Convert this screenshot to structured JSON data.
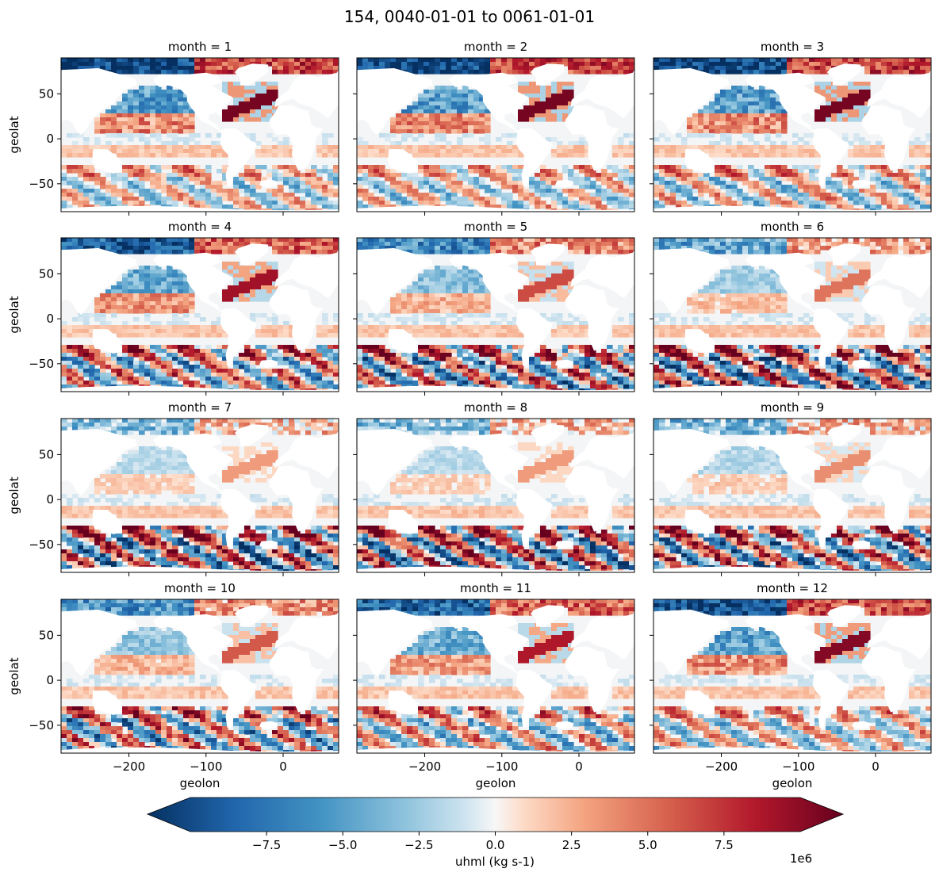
{
  "chart_data": {
    "type": "heatmap",
    "title": "154, 0040-01-01 to 0061-01-01",
    "variable": "uhml",
    "xlabel": "geolon",
    "ylabel": "geolat",
    "xlim": [
      -288,
      72
    ],
    "ylim": [
      -81,
      90
    ],
    "xticks": [
      -200,
      -100,
      0
    ],
    "xtick_labels": [
      "−200",
      "−100",
      "0"
    ],
    "yticks": [
      50,
      0,
      -50
    ],
    "ytick_labels": [
      "50",
      "0",
      "−50"
    ],
    "colormap": "RdBu_r",
    "colorbar": {
      "label": "uhml (kg s-1)",
      "vmin": -10000000,
      "vmax": 10000000,
      "extend": "both",
      "offset_text": "1e6",
      "ticks": [
        -7.5,
        -5.0,
        -2.5,
        0.0,
        2.5,
        5.0,
        7.5
      ],
      "tick_labels": [
        "−7.5",
        "−5.0",
        "−2.5",
        "0.0",
        "2.5",
        "5.0",
        "7.5"
      ]
    },
    "panels": [
      {
        "title": "month = 1",
        "month": 1,
        "intensity": 1.0,
        "south_intensity": 0.45,
        "north_intensity": 1.0
      },
      {
        "title": "month = 2",
        "month": 2,
        "intensity": 1.0,
        "south_intensity": 0.45,
        "north_intensity": 1.0
      },
      {
        "title": "month = 3",
        "month": 3,
        "intensity": 1.0,
        "south_intensity": 0.5,
        "north_intensity": 1.0
      },
      {
        "title": "month = 4",
        "month": 4,
        "intensity": 0.9,
        "south_intensity": 0.75,
        "north_intensity": 0.85
      },
      {
        "title": "month = 5",
        "month": 5,
        "intensity": 0.7,
        "south_intensity": 0.9,
        "north_intensity": 0.6
      },
      {
        "title": "month = 6",
        "month": 6,
        "intensity": 0.55,
        "south_intensity": 1.0,
        "north_intensity": 0.45
      },
      {
        "title": "month = 7",
        "month": 7,
        "intensity": 0.45,
        "south_intensity": 1.0,
        "north_intensity": 0.3
      },
      {
        "title": "month = 8",
        "month": 8,
        "intensity": 0.45,
        "south_intensity": 1.0,
        "north_intensity": 0.3
      },
      {
        "title": "month = 9",
        "month": 9,
        "intensity": 0.5,
        "south_intensity": 0.95,
        "north_intensity": 0.35
      },
      {
        "title": "month = 10",
        "month": 10,
        "intensity": 0.6,
        "south_intensity": 0.8,
        "north_intensity": 0.55
      },
      {
        "title": "month = 11",
        "month": 11,
        "intensity": 0.8,
        "south_intensity": 0.6,
        "north_intensity": 0.8
      },
      {
        "title": "month = 12",
        "month": 12,
        "intensity": 0.95,
        "south_intensity": 0.5,
        "north_intensity": 0.95
      }
    ]
  }
}
